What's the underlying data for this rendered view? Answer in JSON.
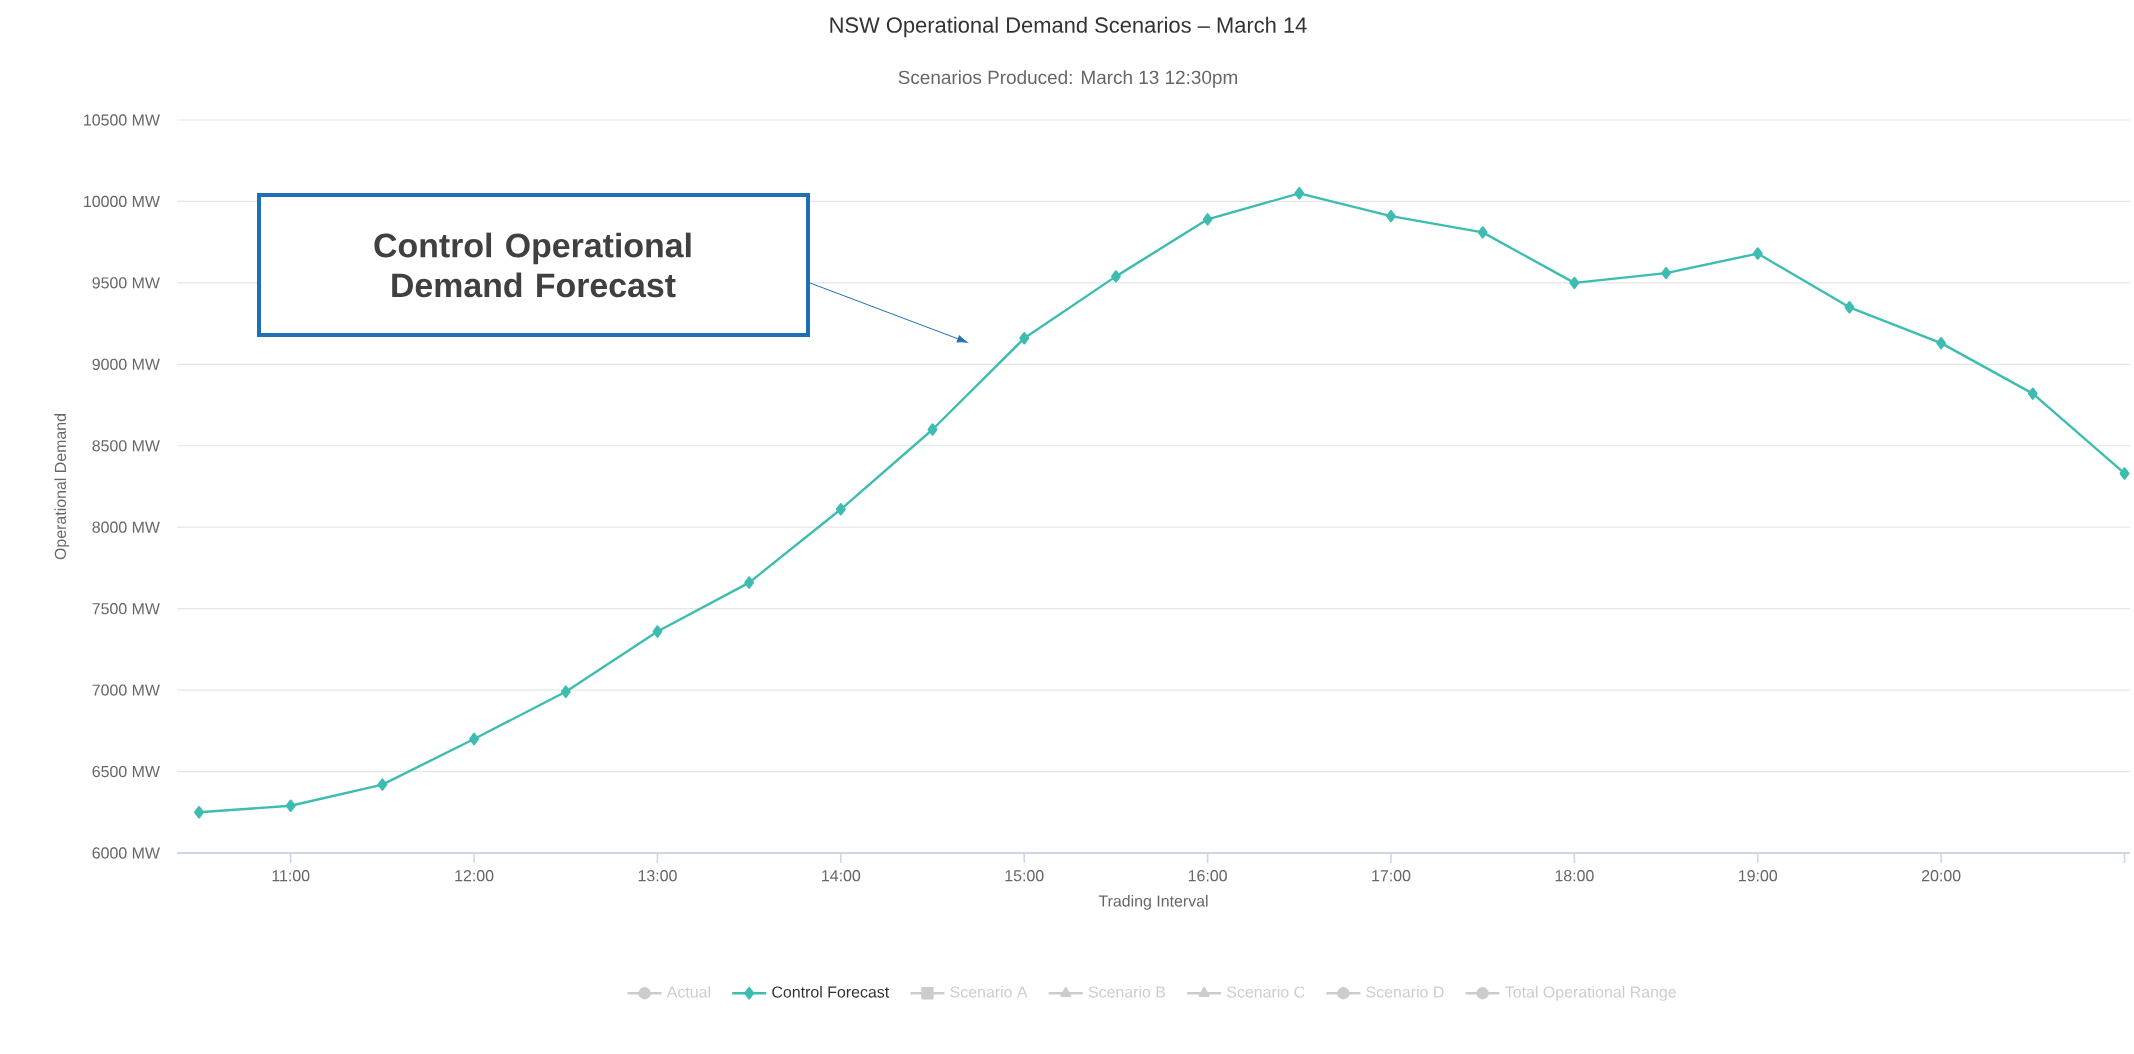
{
  "chart_data": {
    "type": "line",
    "title": "NSW Operational Demand Scenarios – March 14",
    "subtitle": "Scenarios Produced: March 13 12:30pm",
    "xlabel": "Trading Interval",
    "ylabel": "Operational Demand",
    "x": [
      10.5,
      11,
      11.5,
      12,
      12.5,
      13,
      13.5,
      14,
      14.5,
      15,
      15.5,
      16,
      16.5,
      17,
      17.5,
      18,
      18.5,
      19,
      19.5,
      20,
      20.5,
      21
    ],
    "series": [
      {
        "name": "Actual",
        "color": "#cccccc",
        "marker": "circle",
        "values": [
          null,
          null,
          null,
          null,
          null,
          null,
          null,
          null,
          null,
          null,
          null,
          null,
          null,
          null,
          null,
          null,
          null,
          null,
          null,
          null,
          null,
          null
        ]
      },
      {
        "name": "Control Forecast",
        "color": "#3dbcb0",
        "marker": "diamond",
        "values": [
          6250,
          6290,
          6420,
          6700,
          6990,
          7360,
          7660,
          8110,
          8600,
          9160,
          9540,
          9890,
          10050,
          9910,
          9810,
          9500,
          9560,
          9680,
          9350,
          9130,
          8820,
          8330
        ]
      },
      {
        "name": "Scenario A",
        "color": "#cccccc",
        "marker": "square",
        "values": [
          null,
          null,
          null,
          null,
          null,
          null,
          null,
          null,
          null,
          null,
          null,
          null,
          null,
          null,
          null,
          null,
          null,
          null,
          null,
          null,
          null,
          null
        ]
      },
      {
        "name": "Scenario B",
        "color": "#cccccc",
        "marker": "triangle",
        "values": [
          null,
          null,
          null,
          null,
          null,
          null,
          null,
          null,
          null,
          null,
          null,
          null,
          null,
          null,
          null,
          null,
          null,
          null,
          null,
          null,
          null,
          null
        ]
      },
      {
        "name": "Scenario C",
        "color": "#cccccc",
        "marker": "triangle",
        "values": [
          null,
          null,
          null,
          null,
          null,
          null,
          null,
          null,
          null,
          null,
          null,
          null,
          null,
          null,
          null,
          null,
          null,
          null,
          null,
          null,
          null,
          null
        ]
      },
      {
        "name": "Scenario D",
        "color": "#cccccc",
        "marker": "circle",
        "values": [
          null,
          null,
          null,
          null,
          null,
          null,
          null,
          null,
          null,
          null,
          null,
          null,
          null,
          null,
          null,
          null,
          null,
          null,
          null,
          null,
          null,
          null
        ]
      },
      {
        "name": "Total Operational Range",
        "color": "#cccccc",
        "marker": "circle",
        "values": [
          null,
          null,
          null,
          null,
          null,
          null,
          null,
          null,
          null,
          null,
          null,
          null,
          null,
          null,
          null,
          null,
          null,
          null,
          null,
          null,
          null,
          null
        ]
      }
    ],
    "xlim": [
      10.38,
      21.03
    ],
    "xticks": [
      {
        "value": 11,
        "label": "11:00"
      },
      {
        "value": 12,
        "label": "12:00"
      },
      {
        "value": 13,
        "label": "13:00"
      },
      {
        "value": 14,
        "label": "14:00"
      },
      {
        "value": 15,
        "label": "15:00"
      },
      {
        "value": 16,
        "label": "16:00"
      },
      {
        "value": 17,
        "label": "17:00"
      },
      {
        "value": 18,
        "label": "18:00"
      },
      {
        "value": 19,
        "label": "19:00"
      },
      {
        "value": 20,
        "label": "20:00"
      },
      {
        "value": 21,
        "label": null
      }
    ],
    "ylim": [
      6000,
      10500
    ],
    "yticks": [
      {
        "value": 6000,
        "label": "6000 MW"
      },
      {
        "value": 6500,
        "label": "6500 MW"
      },
      {
        "value": 7000,
        "label": "7000 MW"
      },
      {
        "value": 7500,
        "label": "7500 MW"
      },
      {
        "value": 8000,
        "label": "8000 MW"
      },
      {
        "value": 8500,
        "label": "8500 MW"
      },
      {
        "value": 9000,
        "label": "9000 MW"
      },
      {
        "value": 9500,
        "label": "9500 MW"
      },
      {
        "value": 10000,
        "label": "10000 MW"
      },
      {
        "value": 10500,
        "label": "10500 MW"
      }
    ],
    "grid": "y",
    "legend": "bottom",
    "line_style": "solid",
    "annotations": [
      "Control Operational Demand Forecast"
    ]
  }
}
